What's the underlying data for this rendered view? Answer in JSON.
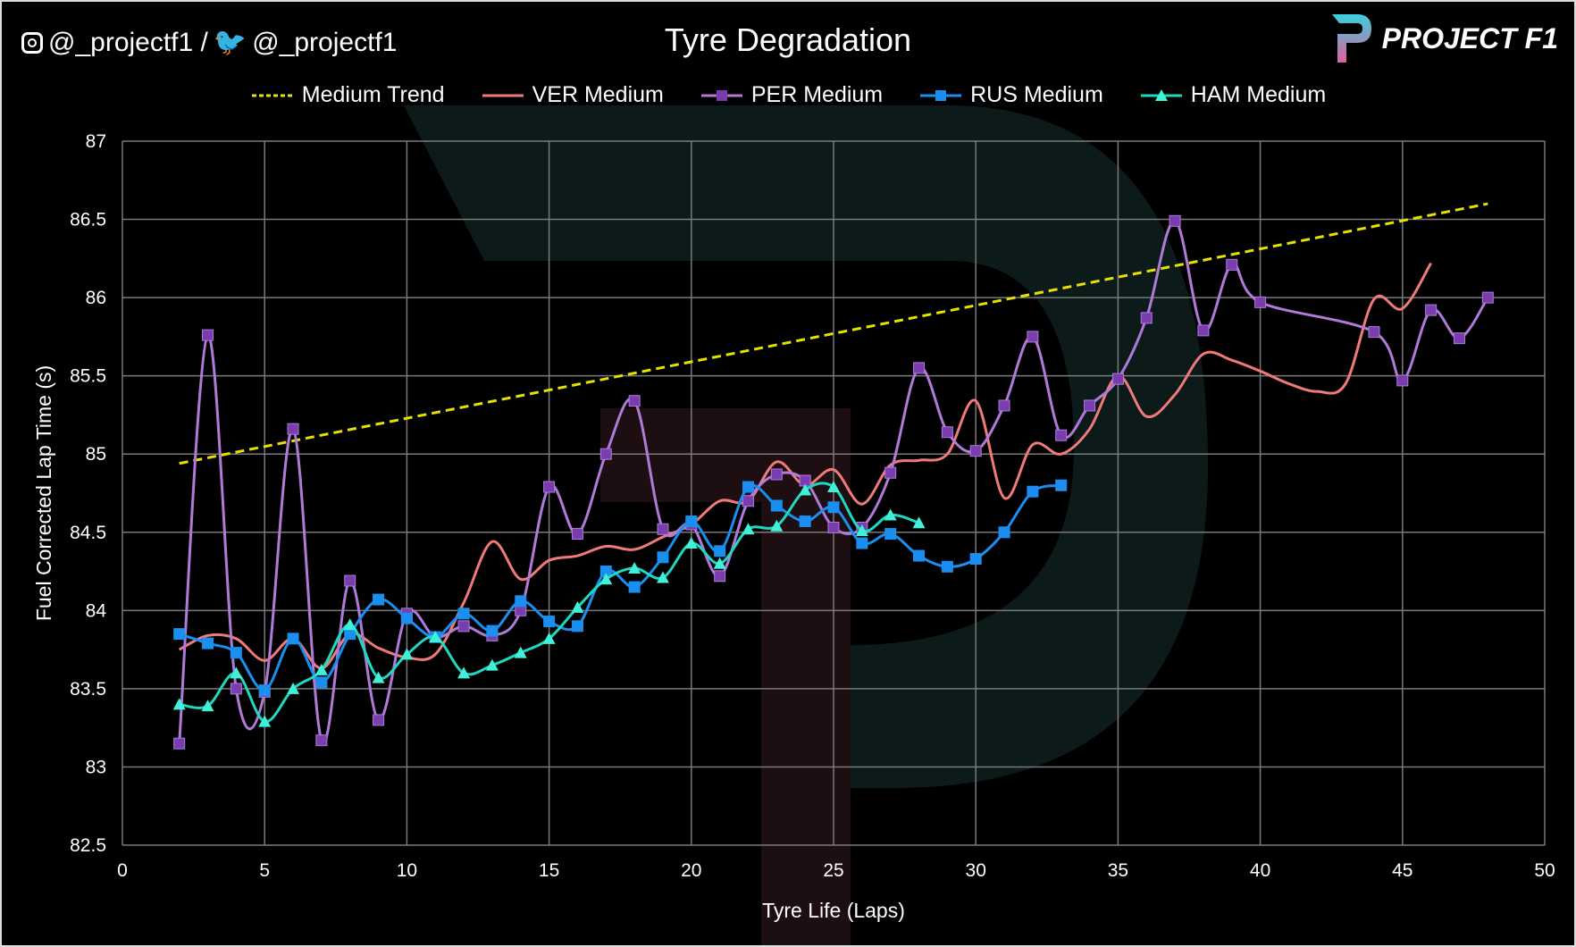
{
  "header": {
    "social_handles": "@_projectf1 / ",
    "social_handle_2": "@_projectf1",
    "brand": "PROJECT F1"
  },
  "chart_data": {
    "type": "line",
    "title": "Tyre Degradation",
    "xlabel": "Tyre Life (Laps)",
    "ylabel": "Fuel Corrected Lap Time (s)",
    "xlim": [
      0,
      50
    ],
    "ylim": [
      82.5,
      87
    ],
    "xticks": [
      0,
      5,
      10,
      15,
      20,
      25,
      30,
      35,
      40,
      45,
      50
    ],
    "yticks": [
      82.5,
      83,
      83.5,
      84,
      84.5,
      85,
      85.5,
      86,
      86.5,
      87
    ],
    "grid": true,
    "legend_position": "top",
    "series": [
      {
        "name": "Medium Trend",
        "color": "#e8e000",
        "style": "dashed",
        "marker": "none",
        "x": [
          2,
          48
        ],
        "y": [
          84.94,
          86.6
        ]
      },
      {
        "name": "VER Medium",
        "color": "#f07a7a",
        "style": "smooth",
        "marker": "none",
        "x": [
          2,
          3,
          4,
          5,
          6,
          7,
          8,
          9,
          10,
          11,
          12,
          13,
          14,
          15,
          16,
          17,
          18,
          19,
          20,
          21,
          22,
          23,
          24,
          25,
          26,
          27,
          28,
          29,
          30,
          31,
          32,
          33,
          34,
          35,
          36,
          37,
          38,
          39,
          40,
          41,
          42,
          43,
          44,
          45,
          46
        ],
        "y": [
          83.75,
          83.84,
          83.82,
          83.68,
          83.82,
          83.63,
          83.85,
          83.76,
          83.7,
          83.72,
          84.05,
          84.44,
          84.2,
          84.32,
          84.35,
          84.41,
          84.39,
          84.47,
          84.55,
          84.7,
          84.7,
          84.95,
          84.8,
          84.9,
          84.68,
          84.93,
          84.96,
          85.0,
          85.34,
          84.72,
          85.06,
          85.0,
          85.16,
          85.5,
          85.24,
          85.38,
          85.64,
          85.6,
          85.53,
          85.45,
          85.4,
          85.45,
          85.99,
          85.93,
          86.22
        ]
      },
      {
        "name": "PER Medium",
        "color": "#b07ad8",
        "marker_color": "#7a3db0",
        "style": "smooth",
        "marker": "square",
        "x": [
          2,
          3,
          4,
          5,
          6,
          7,
          8,
          9,
          10,
          11,
          12,
          13,
          14,
          15,
          16,
          17,
          18,
          19,
          20,
          21,
          22,
          23,
          24,
          25,
          26,
          27,
          28,
          29,
          30,
          31,
          32,
          33,
          34,
          35,
          36,
          37,
          38,
          39,
          40,
          44,
          45,
          46,
          47,
          48
        ],
        "y": [
          83.15,
          85.76,
          83.5,
          83.48,
          85.16,
          83.17,
          84.19,
          83.3,
          83.98,
          83.83,
          83.9,
          83.84,
          84.0,
          84.79,
          84.49,
          85.0,
          85.34,
          84.52,
          84.55,
          84.22,
          84.7,
          84.87,
          84.83,
          84.53,
          84.53,
          84.88,
          85.55,
          85.14,
          85.02,
          85.31,
          85.75,
          85.12,
          85.31,
          85.48,
          85.87,
          86.49,
          85.79,
          86.21,
          85.97,
          85.78,
          85.47,
          85.92,
          85.74,
          86.0
        ]
      },
      {
        "name": "RUS Medium",
        "color": "#1a8fef",
        "marker_color": "#1a8fef",
        "style": "smooth",
        "marker": "square",
        "x": [
          2,
          3,
          4,
          5,
          6,
          7,
          8,
          9,
          10,
          11,
          12,
          13,
          14,
          15,
          16,
          17,
          18,
          19,
          20,
          21,
          22,
          23,
          24,
          25,
          26,
          27,
          28,
          29,
          30,
          31,
          32,
          33
        ],
        "y": [
          83.85,
          83.79,
          83.73,
          83.49,
          83.82,
          83.54,
          83.85,
          84.07,
          83.95,
          83.83,
          83.98,
          83.87,
          84.06,
          83.93,
          83.9,
          84.25,
          84.15,
          84.34,
          84.57,
          84.38,
          84.79,
          84.67,
          84.57,
          84.66,
          84.43,
          84.49,
          84.35,
          84.28,
          84.33,
          84.5,
          84.76,
          84.8
        ]
      },
      {
        "name": "HAM Medium",
        "color": "#20d8c0",
        "marker_color": "#40f0d8",
        "style": "smooth",
        "marker": "triangle",
        "x": [
          2,
          3,
          4,
          5,
          6,
          7,
          8,
          9,
          10,
          11,
          12,
          13,
          14,
          15,
          16,
          17,
          18,
          19,
          20,
          21,
          22,
          23,
          24,
          25,
          26,
          27,
          28
        ],
        "y": [
          83.4,
          83.39,
          83.6,
          83.29,
          83.5,
          83.62,
          83.91,
          83.57,
          83.72,
          83.83,
          83.6,
          83.65,
          83.73,
          83.82,
          84.02,
          84.2,
          84.27,
          84.21,
          84.43,
          84.3,
          84.52,
          84.54,
          84.77,
          84.79,
          84.51,
          84.61,
          84.56
        ]
      }
    ]
  }
}
